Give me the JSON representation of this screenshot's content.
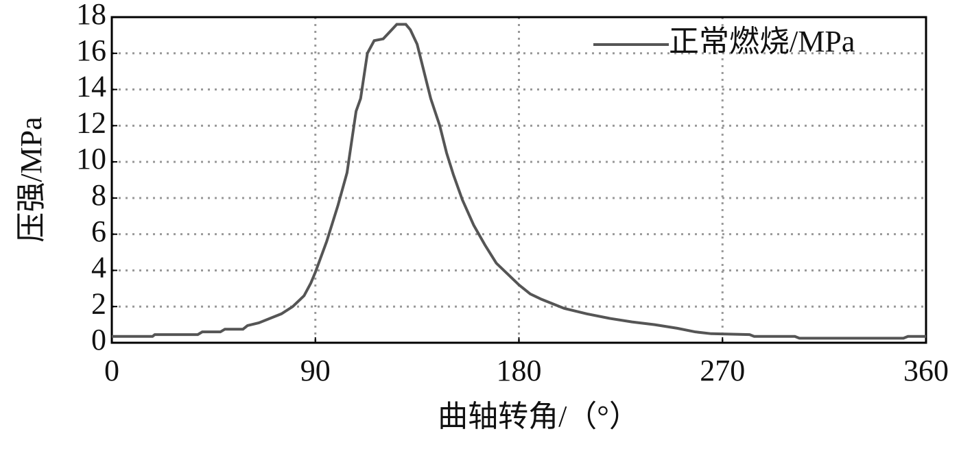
{
  "chart_data": {
    "type": "line",
    "xlabel": "曲轴转角/（°）",
    "ylabel": "压强/MPa",
    "xlim": [
      0,
      360
    ],
    "xticks": [
      0,
      90,
      180,
      270,
      360
    ],
    "ylim": [
      0,
      18
    ],
    "yticks": [
      0,
      2,
      4,
      6,
      8,
      10,
      12,
      14,
      16,
      18
    ],
    "grid": true,
    "legend": "upper right",
    "series": [
      {
        "name": "正常燃烧/MPa",
        "color": "#555555",
        "x": [
          0,
          18,
          19,
          38,
          40,
          48,
          50,
          58,
          60,
          65,
          70,
          75,
          80,
          85,
          88,
          90,
          95,
          100,
          104,
          108,
          110,
          113,
          116,
          120,
          123,
          126,
          130,
          132,
          135,
          138,
          141,
          145,
          148,
          151,
          155,
          160,
          165,
          170,
          175,
          180,
          185,
          190,
          200,
          210,
          220,
          230,
          240,
          250,
          258,
          265,
          282,
          284,
          302,
          304,
          350,
          352,
          360
        ],
        "values": [
          0.35,
          0.35,
          0.45,
          0.45,
          0.6,
          0.6,
          0.75,
          0.75,
          0.95,
          1.1,
          1.35,
          1.6,
          2.0,
          2.6,
          3.3,
          3.9,
          5.6,
          7.6,
          9.4,
          12.8,
          13.5,
          16.0,
          16.7,
          16.8,
          17.2,
          17.6,
          17.6,
          17.3,
          16.5,
          15.0,
          13.5,
          12.0,
          10.5,
          9.3,
          7.9,
          6.5,
          5.4,
          4.4,
          3.8,
          3.2,
          2.7,
          2.4,
          1.9,
          1.6,
          1.35,
          1.15,
          1.0,
          0.8,
          0.6,
          0.5,
          0.45,
          0.35,
          0.35,
          0.25,
          0.25,
          0.35,
          0.35
        ]
      }
    ]
  }
}
